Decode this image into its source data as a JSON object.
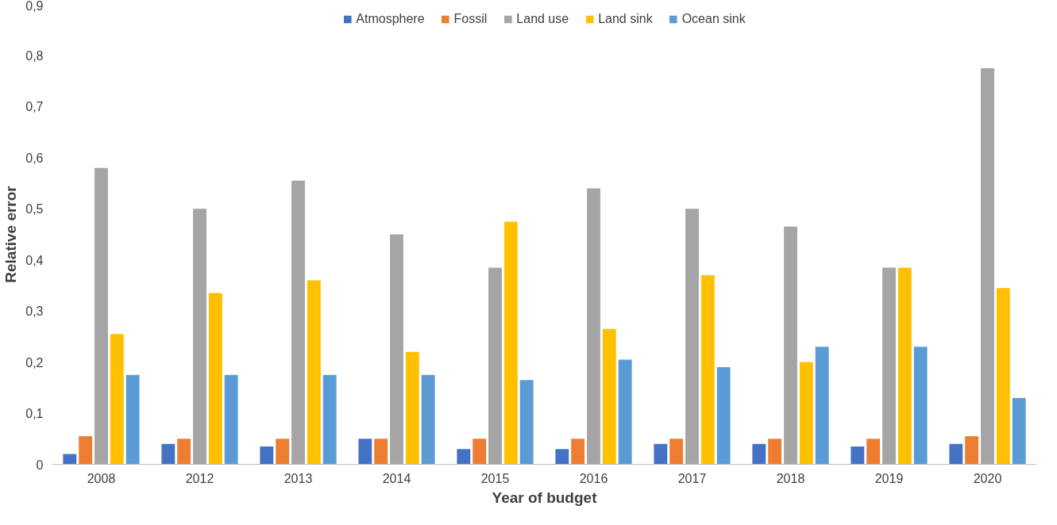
{
  "chart_data": {
    "type": "bar",
    "xlabel": "Year of budget",
    "ylabel": "Relative error",
    "categories": [
      "2008",
      "2012",
      "2013",
      "2014",
      "2015",
      "2016",
      "2017",
      "2018",
      "2019",
      "2020"
    ],
    "series": [
      {
        "name": "Atmosphere",
        "color": "#4472c4",
        "values": [
          0.02,
          0.04,
          0.035,
          0.05,
          0.03,
          0.03,
          0.04,
          0.04,
          0.035,
          0.04
        ]
      },
      {
        "name": "Fossil",
        "color": "#ed7d31",
        "values": [
          0.055,
          0.05,
          0.05,
          0.05,
          0.05,
          0.05,
          0.05,
          0.05,
          0.05,
          0.055
        ]
      },
      {
        "name": "Land use",
        "color": "#a5a5a5",
        "values": [
          0.58,
          0.5,
          0.555,
          0.45,
          0.385,
          0.54,
          0.5,
          0.465,
          0.385,
          0.775
        ]
      },
      {
        "name": "Land sink",
        "color": "#ffc000",
        "values": [
          0.255,
          0.335,
          0.36,
          0.22,
          0.475,
          0.265,
          0.37,
          0.2,
          0.385,
          0.345
        ]
      },
      {
        "name": "Ocean sink",
        "color": "#5b9bd5",
        "values": [
          0.175,
          0.175,
          0.175,
          0.175,
          0.165,
          0.205,
          0.19,
          0.23,
          0.23,
          0.13
        ]
      }
    ],
    "ylim": [
      0,
      0.9
    ],
    "yticks": [
      0,
      {
        "value": 0.1,
        "label": "0,1"
      },
      {
        "value": 0.2,
        "label": "0,2"
      },
      {
        "value": 0.3,
        "label": "0,3"
      },
      {
        "value": 0.4,
        "label": "0,4"
      },
      {
        "value": 0.5,
        "label": "0,5"
      },
      {
        "value": 0.6,
        "label": "0,6"
      },
      {
        "value": 0.7,
        "label": "0,7"
      },
      {
        "value": 0.8,
        "label": "0,8"
      },
      {
        "value": 0.9,
        "label": "0,9"
      }
    ],
    "grid": false,
    "legend": "top"
  }
}
